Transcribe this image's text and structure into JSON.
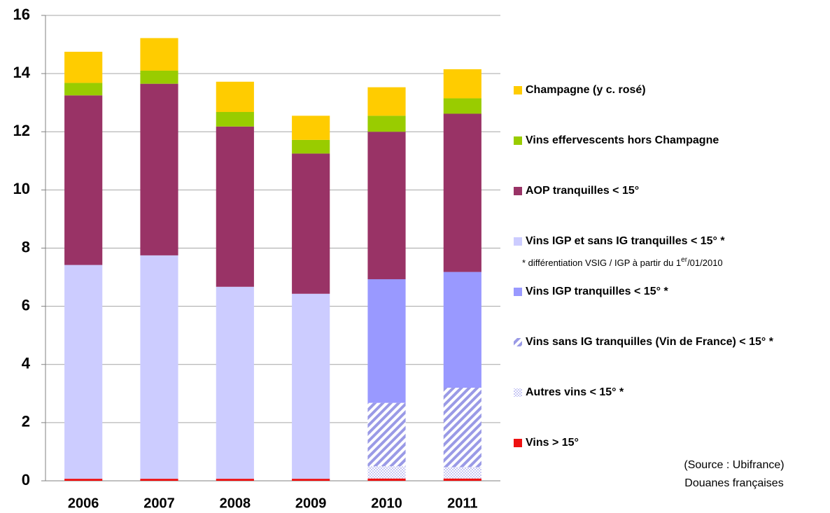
{
  "chart_data": {
    "type": "bar",
    "stacked": true,
    "categories": [
      "2006",
      "2007",
      "2008",
      "2009",
      "2010",
      "2011"
    ],
    "series": [
      {
        "name": "Vins > 15°",
        "color": "#ee1111",
        "values": [
          0.07,
          0.07,
          0.07,
          0.07,
          0.08,
          0.08
        ]
      },
      {
        "name": "Autres vins < 15° *",
        "color": "#c8c8f4",
        "pattern": "dots",
        "values": [
          null,
          null,
          null,
          null,
          0.42,
          0.39
        ]
      },
      {
        "name": "Vins sans IG tranquilles (Vin de France) < 15° *",
        "color": "#9a9ae6",
        "pattern": "hatch",
        "values": [
          null,
          null,
          null,
          null,
          2.18,
          2.73
        ]
      },
      {
        "name": "Vins IGP tranquilles < 15° *",
        "color": "#9999ff",
        "values": [
          null,
          null,
          null,
          null,
          4.25,
          3.98
        ]
      },
      {
        "name": "Vins IGP et sans IG tranquilles < 15° *",
        "color": "#ccccff",
        "values": [
          7.35,
          7.68,
          6.6,
          6.36,
          null,
          null
        ]
      },
      {
        "name": "AOP tranquilles < 15°",
        "color": "#993366",
        "values": [
          5.83,
          5.9,
          5.51,
          4.82,
          5.07,
          5.44
        ]
      },
      {
        "name": "Vins effervescents hors Champagne",
        "color": "#99cc00",
        "values": [
          0.43,
          0.45,
          0.5,
          0.47,
          0.55,
          0.53
        ]
      },
      {
        "name": "Champagne (y c. rosé)",
        "color": "#ffcc00",
        "values": [
          1.07,
          1.12,
          1.04,
          0.83,
          0.98,
          1.0
        ]
      }
    ],
    "ylim": [
      0,
      16
    ],
    "yticks": [
      0,
      2,
      4,
      6,
      8,
      10,
      12,
      14,
      16
    ],
    "grid": true,
    "legend": "right",
    "annotations": {
      "note": [
        "* différentiation VSIG / IGP à partir du 1",
        "er",
        "/01/2010"
      ],
      "source": [
        "(Source : Ubifrance)",
        "Douanes françaises"
      ]
    }
  }
}
